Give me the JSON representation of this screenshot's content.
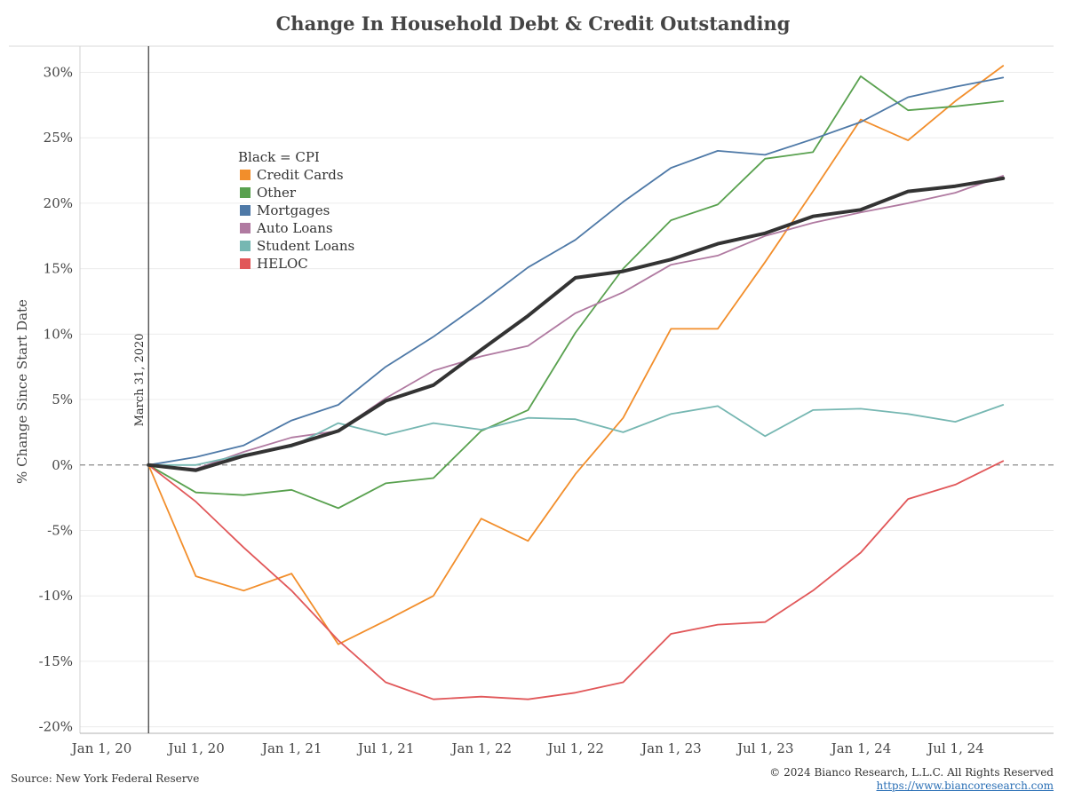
{
  "chart_data": {
    "type": "line",
    "title": "Change In Household Debt & Credit Outstanding",
    "ylabel": "% Change Since Start Date",
    "xlabel": "",
    "x_ticks": [
      "Jan 1, 20",
      "Jul 1, 20",
      "Jan 1, 21",
      "Jul 1, 21",
      "Jan 1, 22",
      "Jul 1, 22",
      "Jan 1, 23",
      "Jul 1, 23",
      "Jan 1, 24",
      "Jul 1, 24"
    ],
    "y_ticks": [
      "30%",
      "25%",
      "20%",
      "15%",
      "10%",
      "5%",
      "0%",
      "-5%",
      "-10%",
      "-15%",
      "-20%"
    ],
    "ylim": [
      -20.5,
      32
    ],
    "xlim": [
      "2019-11-20",
      "2025-01-05"
    ],
    "grid": true,
    "legend_position": "top-left",
    "legend_title": "Black = CPI",
    "x": [
      "2020-03-31",
      "2020-06-30",
      "2020-09-30",
      "2020-12-31",
      "2021-03-31",
      "2021-06-30",
      "2021-09-30",
      "2021-12-31",
      "2022-03-31",
      "2022-06-30",
      "2022-09-30",
      "2022-12-31",
      "2023-03-31",
      "2023-06-30",
      "2023-09-30",
      "2023-12-31",
      "2024-03-31",
      "2024-06-30",
      "2024-09-30"
    ],
    "series": [
      {
        "name": "Credit Cards",
        "color": "#f28e2b",
        "width": 1.8,
        "values": [
          0,
          -8.5,
          -9.6,
          -8.3,
          -13.7,
          -11.9,
          -10.0,
          -4.1,
          -5.8,
          -0.7,
          3.6,
          10.4,
          10.4,
          15.5,
          20.9,
          26.4,
          24.8,
          27.8,
          30.5
        ]
      },
      {
        "name": "Other",
        "color": "#59a14f",
        "width": 1.8,
        "values": [
          0,
          -2.1,
          -2.3,
          -1.9,
          -3.3,
          -1.4,
          -1.0,
          2.6,
          4.2,
          10.1,
          15.0,
          18.7,
          19.9,
          23.4,
          23.9,
          29.7,
          27.1,
          27.4,
          27.8
        ]
      },
      {
        "name": "Mortgages",
        "color": "#4e79a7",
        "width": 1.8,
        "values": [
          0,
          0.6,
          1.5,
          3.4,
          4.6,
          7.5,
          9.8,
          12.4,
          15.1,
          17.2,
          20.1,
          22.7,
          24.0,
          23.7,
          24.9,
          26.2,
          28.1,
          28.9,
          29.6
        ]
      },
      {
        "name": "Auto Loans",
        "color": "#b07aa1",
        "width": 1.8,
        "values": [
          0,
          -0.3,
          1.0,
          2.1,
          2.6,
          5.1,
          7.2,
          8.3,
          9.1,
          11.6,
          13.2,
          15.3,
          16.0,
          17.5,
          18.5,
          19.3,
          20.0,
          20.8,
          22.1
        ]
      },
      {
        "name": "Student Loans",
        "color": "#76b7b2",
        "width": 1.8,
        "values": [
          0,
          0.0,
          0.8,
          1.4,
          3.2,
          2.3,
          3.2,
          2.7,
          3.6,
          3.5,
          2.5,
          3.9,
          4.5,
          2.2,
          4.2,
          4.3,
          3.9,
          3.3,
          4.6
        ]
      },
      {
        "name": "HELOC",
        "color": "#e15759",
        "width": 1.8,
        "values": [
          0,
          -2.8,
          -6.3,
          -9.6,
          -13.4,
          -16.6,
          -17.9,
          -17.7,
          -17.9,
          -17.4,
          -16.6,
          -12.9,
          -12.2,
          -12.0,
          -9.6,
          -6.7,
          -2.6,
          -1.5,
          0.3
        ]
      },
      {
        "name": "CPI",
        "color": "#333333",
        "width": 4,
        "values": [
          0,
          -0.4,
          0.7,
          1.5,
          2.6,
          4.9,
          6.1,
          8.8,
          11.4,
          14.3,
          14.8,
          15.7,
          16.9,
          17.7,
          19.0,
          19.5,
          20.9,
          21.3,
          21.9
        ]
      }
    ],
    "annotations": [
      {
        "type": "vline",
        "x": "2020-03-31",
        "label": "March 31, 2020"
      },
      {
        "type": "hline",
        "y": 0,
        "style": "dashed"
      }
    ]
  },
  "legend": {
    "title": "Black = CPI",
    "items": [
      {
        "label": "Credit Cards",
        "color": "#f28e2b"
      },
      {
        "label": "Other",
        "color": "#59a14f"
      },
      {
        "label": "Mortgages",
        "color": "#4e79a7"
      },
      {
        "label": "Auto Loans",
        "color": "#b07aa1"
      },
      {
        "label": "Student Loans",
        "color": "#76b7b2"
      },
      {
        "label": "HELOC",
        "color": "#e15759"
      }
    ]
  },
  "footer": {
    "source": "Source: New York Federal Reserve",
    "copyright": "© 2024 Bianco Research, L.L.C. All Rights Reserved",
    "url": "https://www.biancoresearch.com"
  }
}
